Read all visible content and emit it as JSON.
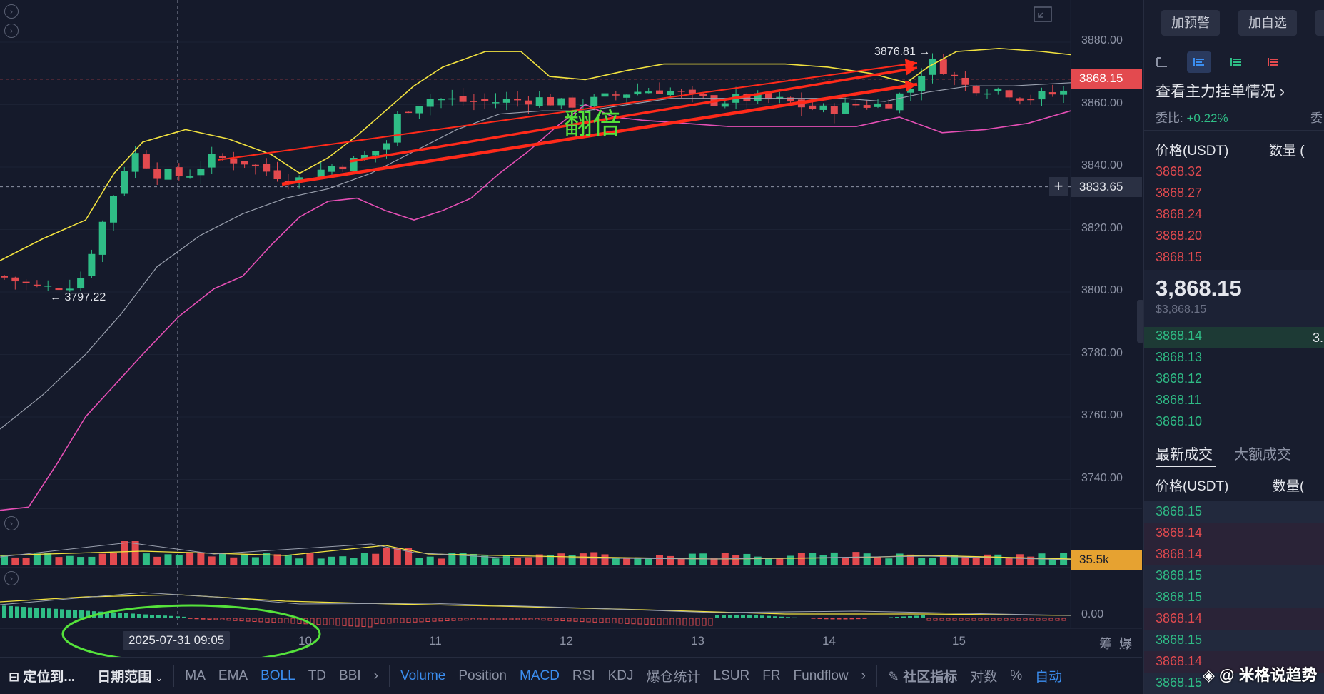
{
  "chart": {
    "price_ticks": [
      "3880.00",
      "3860.00",
      "3840.00",
      "3820.00",
      "3800.00",
      "3780.00",
      "3760.00",
      "3740.00"
    ],
    "current_price_tag": "3868.15",
    "crosshair_price_tag": "3833.65",
    "volume_tag": "35.5k",
    "macd_zero": "0.00",
    "high_label": "3876.81 →",
    "low_label": "← 3797.22",
    "annotation_text": "翻倍",
    "crosshair_date": "2025-07-31 09:05",
    "date_ticks": [
      "10",
      "11",
      "12",
      "13",
      "14",
      "15"
    ],
    "right_axis_labels": [
      "筹",
      "爆"
    ],
    "colors": {
      "up": "#2fbd86",
      "down": "#e34a4f",
      "boll_upper": "#f2e23f",
      "boll_mid": "#9aa0ae",
      "boll_lower": "#e54fb5",
      "arrow": "#ff2a1a",
      "ellipse": "#55e23b"
    }
  },
  "chart_data": {
    "type": "candlestick",
    "symbol_quote": "USDT",
    "x": [
      "10",
      "11",
      "12",
      "13",
      "14",
      "15"
    ],
    "ylim": [
      3730,
      3890
    ],
    "high": 3876.81,
    "low": 3797.22,
    "last": 3868.15,
    "crosshair": 3833.65,
    "indicators": [
      "BOLL",
      "Volume",
      "MACD"
    ]
  },
  "bottom_bar": {
    "locate": "定位到...",
    "date_range": "日期范围",
    "indicators_main": [
      "MA",
      "EMA",
      "BOLL",
      "TD",
      "BBI"
    ],
    "indicators_sub": [
      "Volume",
      "Position",
      "MACD",
      "RSI",
      "KDJ",
      "爆仓统计",
      "LSUR",
      "FR",
      "Fundflow"
    ],
    "community": "社区指标",
    "log": "对数",
    "percent": "%",
    "auto": "自动"
  },
  "right_panel": {
    "btn_alert": "加预警",
    "btn_watch": "加自选",
    "orderbook_link": "查看主力挂单情况",
    "ratio_label": "委比:",
    "ratio_value": "+0.22%",
    "ratio_label2": "委",
    "price_header": "价格(USDT)",
    "qty_header": "数量 (",
    "asks": [
      "3868.32",
      "3868.27",
      "3868.24",
      "3868.20",
      "3868.15"
    ],
    "mid_price": "3,868.15",
    "mid_price_usd": "$3,868.15",
    "bids": [
      "3868.14",
      "3868.13",
      "3868.12",
      "3868.11",
      "3868.10"
    ],
    "bid_first_qty": "3.",
    "tab_latest": "最新成交",
    "tab_large": "大额成交",
    "trade_price_header": "价格(USDT)",
    "trade_qty_header": "数量(",
    "trades": [
      {
        "price": "3868.15",
        "side": "buy"
      },
      {
        "price": "3868.14",
        "side": "sell"
      },
      {
        "price": "3868.14",
        "side": "sell"
      },
      {
        "price": "3868.15",
        "side": "buy"
      },
      {
        "price": "3868.15",
        "side": "buy"
      },
      {
        "price": "3868.14",
        "side": "sell"
      },
      {
        "price": "3868.15",
        "side": "buy"
      },
      {
        "price": "3868.14",
        "side": "sell"
      },
      {
        "price": "3868.15",
        "side": "buy"
      }
    ]
  },
  "watermark": "@ 米格说趋势"
}
